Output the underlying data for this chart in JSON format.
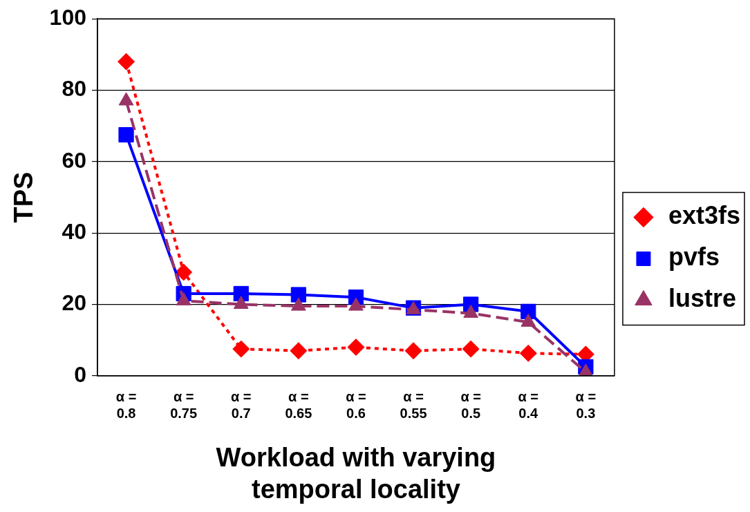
{
  "chart_data": {
    "type": "line",
    "xlabel": "Workload with varying temporal locality",
    "ylabel": "TPS",
    "categories": [
      "α = 0.8",
      "α = 0.75",
      "α = 0.7",
      "α = 0.65",
      "α = 0.6",
      "α = 0.55",
      "α = 0.5",
      "α = 0.4",
      "α = 0.3"
    ],
    "series": [
      {
        "name": "ext3fs",
        "color": "#ff0000",
        "marker": "diamond",
        "line_style": "dotted",
        "values": [
          88,
          29,
          7.5,
          7,
          8,
          7,
          7.5,
          6.3,
          6
        ]
      },
      {
        "name": "pvfs",
        "color": "#0000ff",
        "marker": "square",
        "line_style": "solid",
        "values": [
          67.5,
          23,
          23,
          22.7,
          22,
          19,
          20,
          18,
          2.5
        ]
      },
      {
        "name": "lustre",
        "color": "#993366",
        "marker": "triangle",
        "line_style": "dashed",
        "values": [
          77,
          21,
          20,
          19.5,
          19.5,
          18.5,
          17.5,
          15,
          1
        ]
      }
    ],
    "ylim": [
      0,
      100
    ],
    "yticks": [
      0,
      20,
      40,
      60,
      80,
      100
    ],
    "grid": "y",
    "legend": "right"
  }
}
